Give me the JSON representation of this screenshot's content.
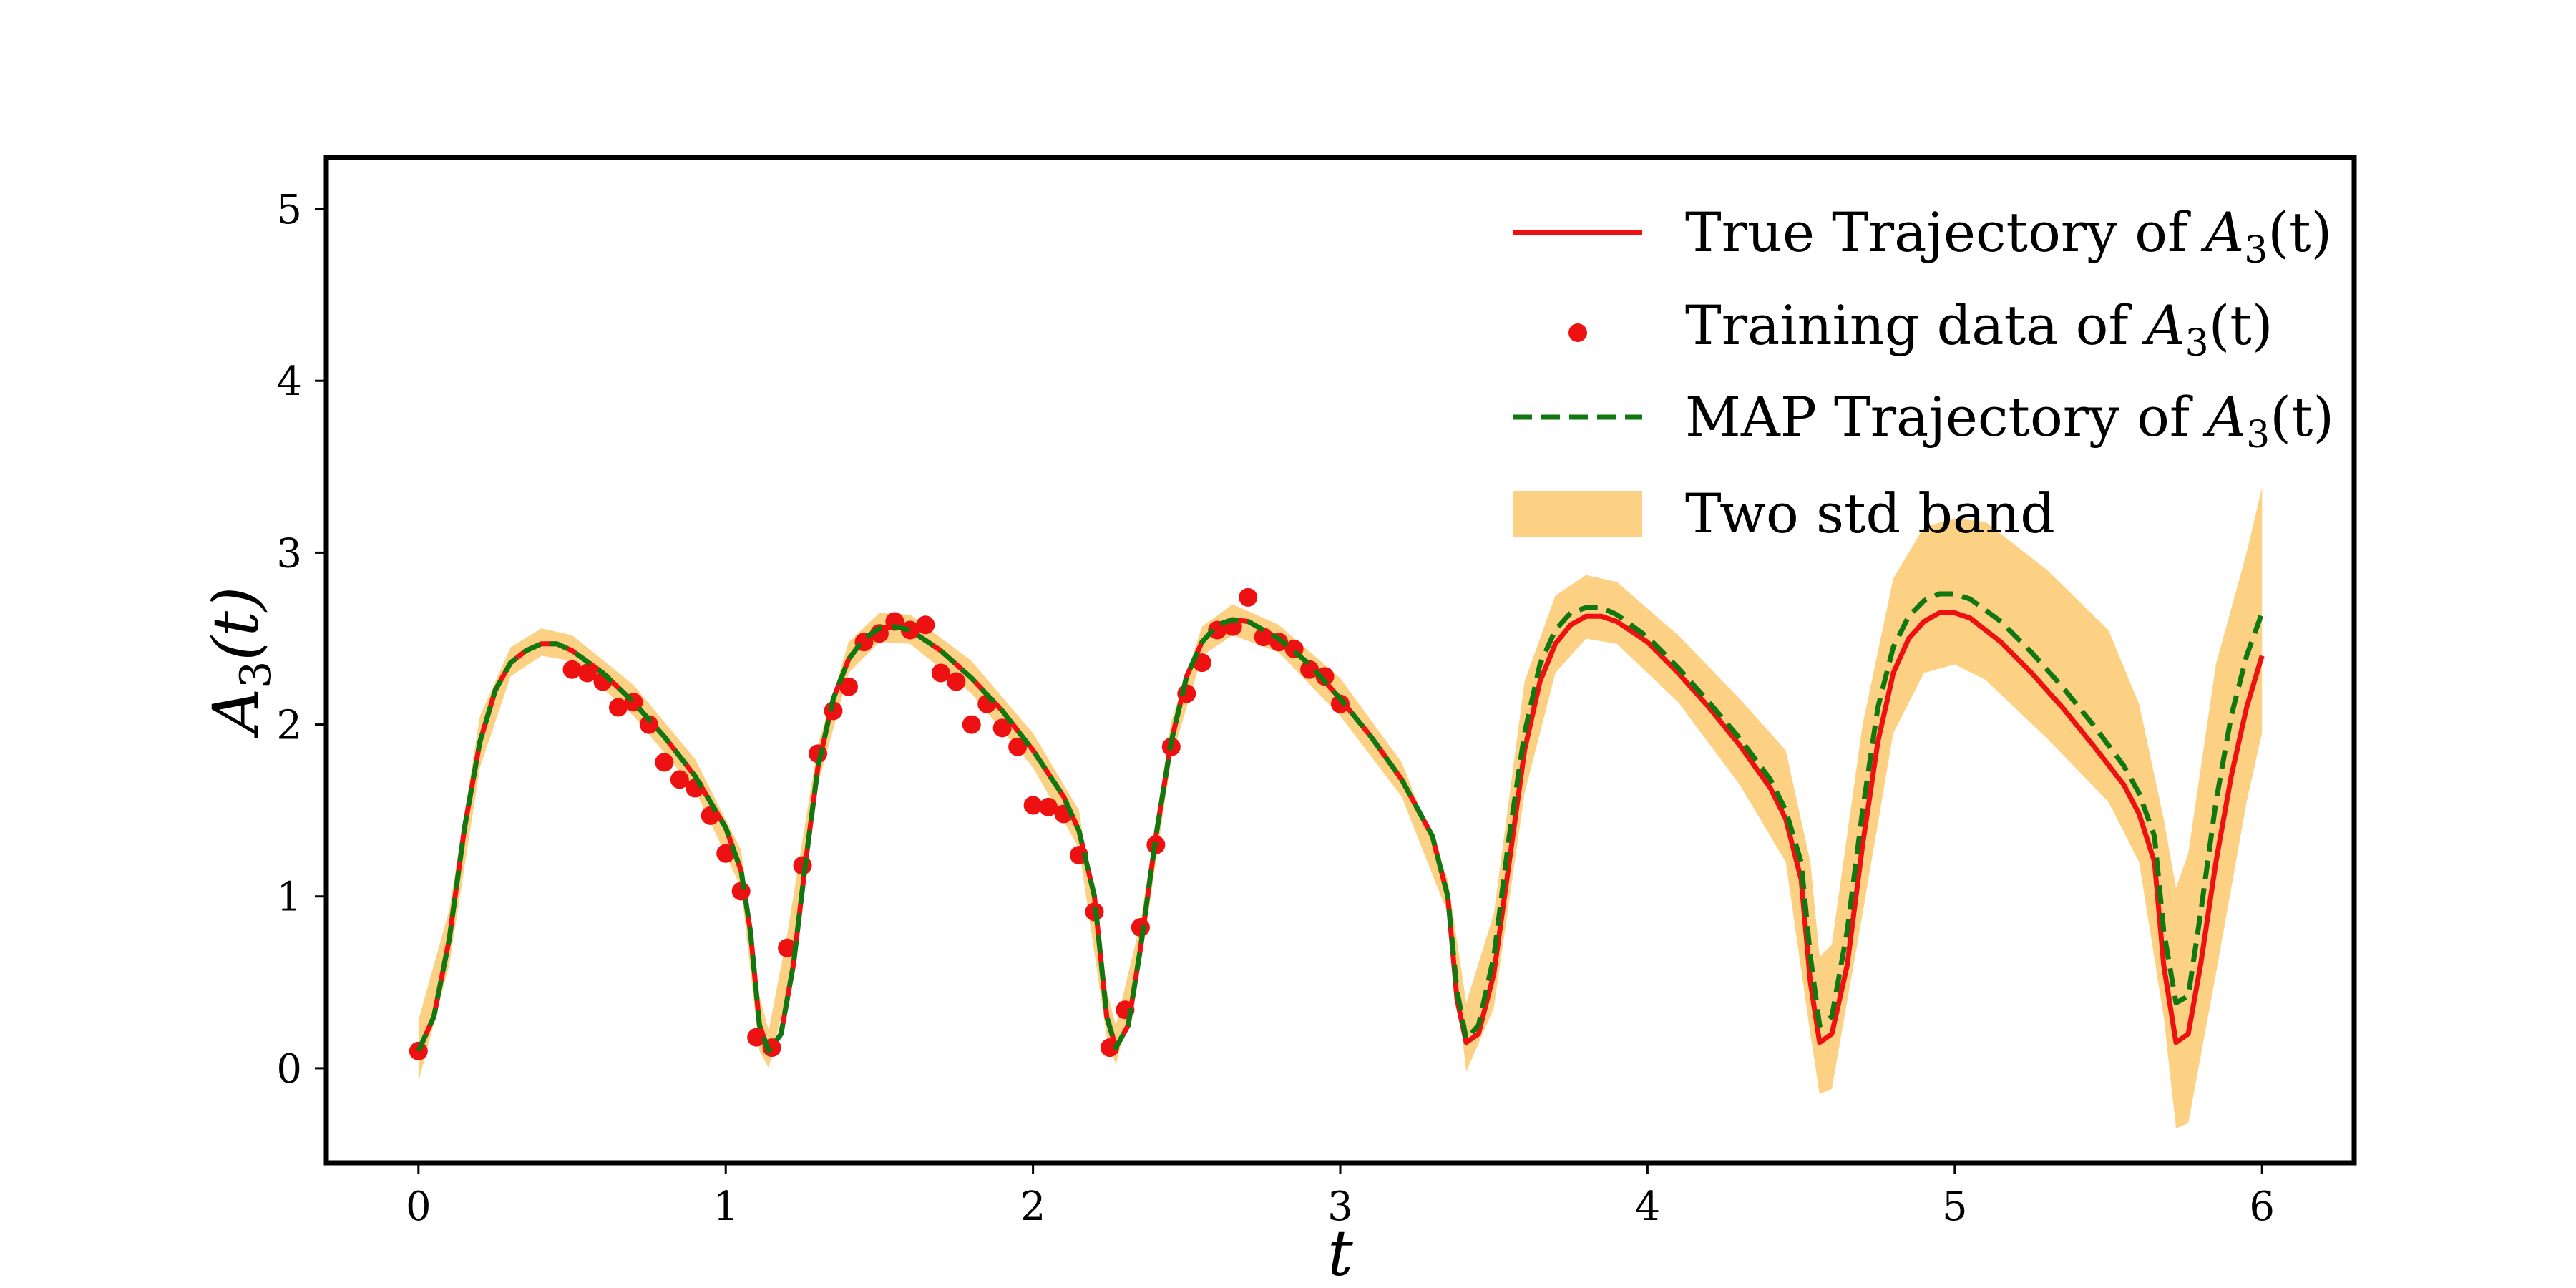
{
  "chart_data": {
    "type": "line",
    "xlabel": "t",
    "ylabel": "A3(t)",
    "ylabel_parts": {
      "base": "A",
      "sub": "3",
      "tail": "(t)"
    },
    "xlim": [
      -0.3,
      6.3
    ],
    "ylim": [
      -0.55,
      5.3
    ],
    "xticks": [
      0,
      1,
      2,
      3,
      4,
      5,
      6
    ],
    "yticks": [
      0,
      1,
      2,
      3,
      4,
      5
    ],
    "grid": false,
    "legend_position": "top-right",
    "legend": [
      {
        "kind": "line",
        "color": "#ee1111",
        "dash": "solid",
        "prefix": "True Trajectory of ",
        "var": "A",
        "sub": "3",
        "tail": "(t)"
      },
      {
        "kind": "dot",
        "color": "#ee1111",
        "prefix": "Training data of ",
        "var": "A",
        "sub": "3",
        "tail": "(t)"
      },
      {
        "kind": "line",
        "color": "#117711",
        "dash": "dashed",
        "prefix": "MAP Trajectory of ",
        "var": "A",
        "sub": "3",
        "tail": "(t)"
      },
      {
        "kind": "band",
        "color": "#fdd184",
        "prefix": "Two std band",
        "var": "",
        "sub": "",
        "tail": ""
      }
    ],
    "series": [
      {
        "kind": "line",
        "color": "#ee1111",
        "points": [
          [
            0.0,
            0.1
          ],
          [
            0.05,
            0.3
          ],
          [
            0.1,
            0.75
          ],
          [
            0.15,
            1.4
          ],
          [
            0.2,
            1.9
          ],
          [
            0.25,
            2.2
          ],
          [
            0.3,
            2.36
          ],
          [
            0.35,
            2.43
          ],
          [
            0.4,
            2.47
          ],
          [
            0.45,
            2.47
          ],
          [
            0.5,
            2.43
          ],
          [
            0.6,
            2.3
          ],
          [
            0.7,
            2.13
          ],
          [
            0.8,
            1.93
          ],
          [
            0.9,
            1.7
          ],
          [
            1.0,
            1.4
          ],
          [
            1.05,
            1.15
          ],
          [
            1.08,
            0.8
          ],
          [
            1.11,
            0.25
          ],
          [
            1.14,
            0.1
          ],
          [
            1.18,
            0.2
          ],
          [
            1.22,
            0.6
          ],
          [
            1.26,
            1.2
          ],
          [
            1.3,
            1.75
          ],
          [
            1.35,
            2.15
          ],
          [
            1.4,
            2.38
          ],
          [
            1.45,
            2.5
          ],
          [
            1.5,
            2.56
          ],
          [
            1.55,
            2.57
          ],
          [
            1.6,
            2.55
          ],
          [
            1.7,
            2.43
          ],
          [
            1.8,
            2.27
          ],
          [
            1.9,
            2.08
          ],
          [
            2.0,
            1.85
          ],
          [
            2.1,
            1.58
          ],
          [
            2.15,
            1.38
          ],
          [
            2.2,
            1.0
          ],
          [
            2.24,
            0.3
          ],
          [
            2.27,
            0.12
          ],
          [
            2.31,
            0.25
          ],
          [
            2.35,
            0.7
          ],
          [
            2.4,
            1.35
          ],
          [
            2.45,
            1.9
          ],
          [
            2.5,
            2.28
          ],
          [
            2.55,
            2.48
          ],
          [
            2.6,
            2.58
          ],
          [
            2.65,
            2.61
          ],
          [
            2.7,
            2.6
          ],
          [
            2.8,
            2.5
          ],
          [
            2.9,
            2.35
          ],
          [
            3.0,
            2.15
          ],
          [
            3.1,
            1.93
          ],
          [
            3.2,
            1.68
          ],
          [
            3.3,
            1.35
          ],
          [
            3.35,
            1.0
          ],
          [
            3.38,
            0.4
          ],
          [
            3.41,
            0.15
          ],
          [
            3.45,
            0.2
          ],
          [
            3.5,
            0.55
          ],
          [
            3.55,
            1.2
          ],
          [
            3.6,
            1.85
          ],
          [
            3.65,
            2.25
          ],
          [
            3.7,
            2.47
          ],
          [
            3.75,
            2.58
          ],
          [
            3.8,
            2.63
          ],
          [
            3.85,
            2.63
          ],
          [
            3.9,
            2.6
          ],
          [
            4.0,
            2.48
          ],
          [
            4.1,
            2.3
          ],
          [
            4.2,
            2.1
          ],
          [
            4.3,
            1.88
          ],
          [
            4.4,
            1.63
          ],
          [
            4.45,
            1.45
          ],
          [
            4.5,
            1.1
          ],
          [
            4.53,
            0.5
          ],
          [
            4.56,
            0.15
          ],
          [
            4.6,
            0.2
          ],
          [
            4.65,
            0.6
          ],
          [
            4.7,
            1.3
          ],
          [
            4.75,
            1.9
          ],
          [
            4.8,
            2.3
          ],
          [
            4.85,
            2.5
          ],
          [
            4.9,
            2.6
          ],
          [
            4.95,
            2.65
          ],
          [
            5.0,
            2.65
          ],
          [
            5.05,
            2.62
          ],
          [
            5.15,
            2.48
          ],
          [
            5.25,
            2.3
          ],
          [
            5.35,
            2.1
          ],
          [
            5.45,
            1.88
          ],
          [
            5.55,
            1.65
          ],
          [
            5.6,
            1.48
          ],
          [
            5.65,
            1.2
          ],
          [
            5.68,
            0.6
          ],
          [
            5.72,
            0.15
          ],
          [
            5.76,
            0.2
          ],
          [
            5.8,
            0.6
          ],
          [
            5.85,
            1.2
          ],
          [
            5.9,
            1.7
          ],
          [
            5.95,
            2.1
          ],
          [
            6.0,
            2.4
          ]
        ]
      },
      {
        "kind": "line",
        "color": "#117711",
        "dash": "dashed",
        "points": [
          [
            0.0,
            0.1
          ],
          [
            0.05,
            0.3
          ],
          [
            0.1,
            0.75
          ],
          [
            0.15,
            1.4
          ],
          [
            0.2,
            1.9
          ],
          [
            0.25,
            2.2
          ],
          [
            0.3,
            2.36
          ],
          [
            0.35,
            2.43
          ],
          [
            0.4,
            2.47
          ],
          [
            0.45,
            2.47
          ],
          [
            0.5,
            2.43
          ],
          [
            0.6,
            2.3
          ],
          [
            0.7,
            2.13
          ],
          [
            0.8,
            1.93
          ],
          [
            0.9,
            1.7
          ],
          [
            1.0,
            1.4
          ],
          [
            1.05,
            1.15
          ],
          [
            1.08,
            0.8
          ],
          [
            1.11,
            0.25
          ],
          [
            1.14,
            0.1
          ],
          [
            1.18,
            0.2
          ],
          [
            1.22,
            0.6
          ],
          [
            1.26,
            1.2
          ],
          [
            1.3,
            1.75
          ],
          [
            1.35,
            2.15
          ],
          [
            1.4,
            2.38
          ],
          [
            1.45,
            2.5
          ],
          [
            1.5,
            2.56
          ],
          [
            1.55,
            2.57
          ],
          [
            1.6,
            2.55
          ],
          [
            1.7,
            2.43
          ],
          [
            1.8,
            2.27
          ],
          [
            1.9,
            2.08
          ],
          [
            2.0,
            1.85
          ],
          [
            2.1,
            1.58
          ],
          [
            2.15,
            1.38
          ],
          [
            2.2,
            1.0
          ],
          [
            2.24,
            0.3
          ],
          [
            2.27,
            0.12
          ],
          [
            2.31,
            0.25
          ],
          [
            2.35,
            0.7
          ],
          [
            2.4,
            1.35
          ],
          [
            2.45,
            1.9
          ],
          [
            2.5,
            2.28
          ],
          [
            2.55,
            2.48
          ],
          [
            2.6,
            2.58
          ],
          [
            2.65,
            2.61
          ],
          [
            2.7,
            2.6
          ],
          [
            2.8,
            2.5
          ],
          [
            2.9,
            2.35
          ],
          [
            3.0,
            2.15
          ],
          [
            3.1,
            1.93
          ],
          [
            3.2,
            1.68
          ],
          [
            3.3,
            1.35
          ],
          [
            3.35,
            1.0
          ],
          [
            3.38,
            0.45
          ],
          [
            3.41,
            0.17
          ],
          [
            3.45,
            0.25
          ],
          [
            3.5,
            0.65
          ],
          [
            3.55,
            1.35
          ],
          [
            3.6,
            1.95
          ],
          [
            3.65,
            2.35
          ],
          [
            3.7,
            2.55
          ],
          [
            3.75,
            2.65
          ],
          [
            3.8,
            2.68
          ],
          [
            3.85,
            2.68
          ],
          [
            3.9,
            2.64
          ],
          [
            4.0,
            2.51
          ],
          [
            4.1,
            2.33
          ],
          [
            4.2,
            2.13
          ],
          [
            4.3,
            1.92
          ],
          [
            4.4,
            1.68
          ],
          [
            4.45,
            1.5
          ],
          [
            4.5,
            1.2
          ],
          [
            4.53,
            0.65
          ],
          [
            4.56,
            0.25
          ],
          [
            4.6,
            0.3
          ],
          [
            4.65,
            0.8
          ],
          [
            4.7,
            1.5
          ],
          [
            4.75,
            2.1
          ],
          [
            4.8,
            2.45
          ],
          [
            4.85,
            2.63
          ],
          [
            4.9,
            2.72
          ],
          [
            4.95,
            2.76
          ],
          [
            5.0,
            2.76
          ],
          [
            5.05,
            2.73
          ],
          [
            5.15,
            2.6
          ],
          [
            5.25,
            2.42
          ],
          [
            5.35,
            2.22
          ],
          [
            5.45,
            2.0
          ],
          [
            5.55,
            1.76
          ],
          [
            5.6,
            1.6
          ],
          [
            5.65,
            1.35
          ],
          [
            5.68,
            0.8
          ],
          [
            5.72,
            0.38
          ],
          [
            5.76,
            0.42
          ],
          [
            5.8,
            0.9
          ],
          [
            5.85,
            1.55
          ],
          [
            5.9,
            2.05
          ],
          [
            5.95,
            2.4
          ],
          [
            6.0,
            2.65
          ]
        ]
      },
      {
        "kind": "band",
        "color": "#fdd184",
        "x": [
          0.0,
          0.1,
          0.2,
          0.3,
          0.4,
          0.5,
          0.7,
          0.9,
          1.05,
          1.11,
          1.14,
          1.2,
          1.3,
          1.4,
          1.5,
          1.6,
          1.8,
          2.0,
          2.15,
          2.24,
          2.27,
          2.35,
          2.45,
          2.55,
          2.65,
          2.8,
          3.0,
          3.2,
          3.35,
          3.41,
          3.5,
          3.6,
          3.7,
          3.8,
          3.9,
          4.1,
          4.3,
          4.45,
          4.53,
          4.56,
          4.6,
          4.7,
          4.8,
          4.9,
          5.0,
          5.1,
          5.3,
          5.5,
          5.6,
          5.68,
          5.72,
          5.76,
          5.85,
          5.95,
          6.0
        ],
        "lower": [
          -0.08,
          0.6,
          1.75,
          2.28,
          2.4,
          2.37,
          2.05,
          1.62,
          1.05,
          0.1,
          0.0,
          0.45,
          1.65,
          2.3,
          2.48,
          2.47,
          2.18,
          1.75,
          1.28,
          0.18,
          0.02,
          0.6,
          1.8,
          2.4,
          2.52,
          2.42,
          2.05,
          1.58,
          0.9,
          -0.02,
          0.35,
          1.6,
          2.3,
          2.5,
          2.47,
          2.13,
          1.65,
          1.2,
          0.2,
          -0.15,
          -0.12,
          0.9,
          1.95,
          2.3,
          2.35,
          2.26,
          1.92,
          1.55,
          1.2,
          0.3,
          -0.35,
          -0.32,
          0.55,
          1.55,
          1.95
        ],
        "upper": [
          0.28,
          0.92,
          2.05,
          2.45,
          2.56,
          2.52,
          2.23,
          1.8,
          1.27,
          0.42,
          0.22,
          0.78,
          1.88,
          2.48,
          2.65,
          2.64,
          2.37,
          1.95,
          1.5,
          0.45,
          0.25,
          0.85,
          2.02,
          2.57,
          2.7,
          2.58,
          2.27,
          1.78,
          1.1,
          0.38,
          0.9,
          2.25,
          2.75,
          2.87,
          2.83,
          2.52,
          2.15,
          1.85,
          1.2,
          0.65,
          0.72,
          2.0,
          2.85,
          3.15,
          3.2,
          3.18,
          2.9,
          2.55,
          2.12,
          1.45,
          1.05,
          1.25,
          2.35,
          3.0,
          3.38
        ]
      },
      {
        "kind": "scatter",
        "color": "#ee1111",
        "x": [
          0.0,
          0.5,
          0.55,
          0.6,
          0.65,
          0.7,
          0.75,
          0.8,
          0.85,
          0.9,
          0.95,
          1.0,
          1.05,
          1.1,
          1.15,
          1.2,
          1.25,
          1.3,
          1.35,
          1.4,
          1.45,
          1.5,
          1.55,
          1.6,
          1.65,
          1.7,
          1.75,
          1.8,
          1.85,
          1.9,
          1.95,
          2.0,
          2.05,
          2.1,
          2.15,
          2.2,
          2.25,
          2.3,
          2.35,
          2.4,
          2.45,
          2.5,
          2.55,
          2.6,
          2.65,
          2.7,
          2.75,
          2.8,
          2.85,
          2.9,
          2.95,
          3.0
        ],
        "y": [
          0.1,
          2.32,
          2.3,
          2.25,
          2.1,
          2.13,
          2.0,
          1.78,
          1.68,
          1.63,
          1.47,
          1.25,
          1.03,
          0.18,
          0.12,
          0.7,
          1.18,
          1.83,
          2.08,
          2.22,
          2.48,
          2.53,
          2.6,
          2.55,
          2.58,
          2.3,
          2.25,
          2.0,
          2.12,
          1.98,
          1.87,
          1.53,
          1.52,
          1.48,
          1.24,
          0.91,
          0.12,
          0.34,
          0.82,
          1.3,
          1.87,
          2.18,
          2.36,
          2.55,
          2.57,
          2.74,
          2.51,
          2.48,
          2.44,
          2.32,
          2.28,
          2.12
        ]
      }
    ]
  }
}
